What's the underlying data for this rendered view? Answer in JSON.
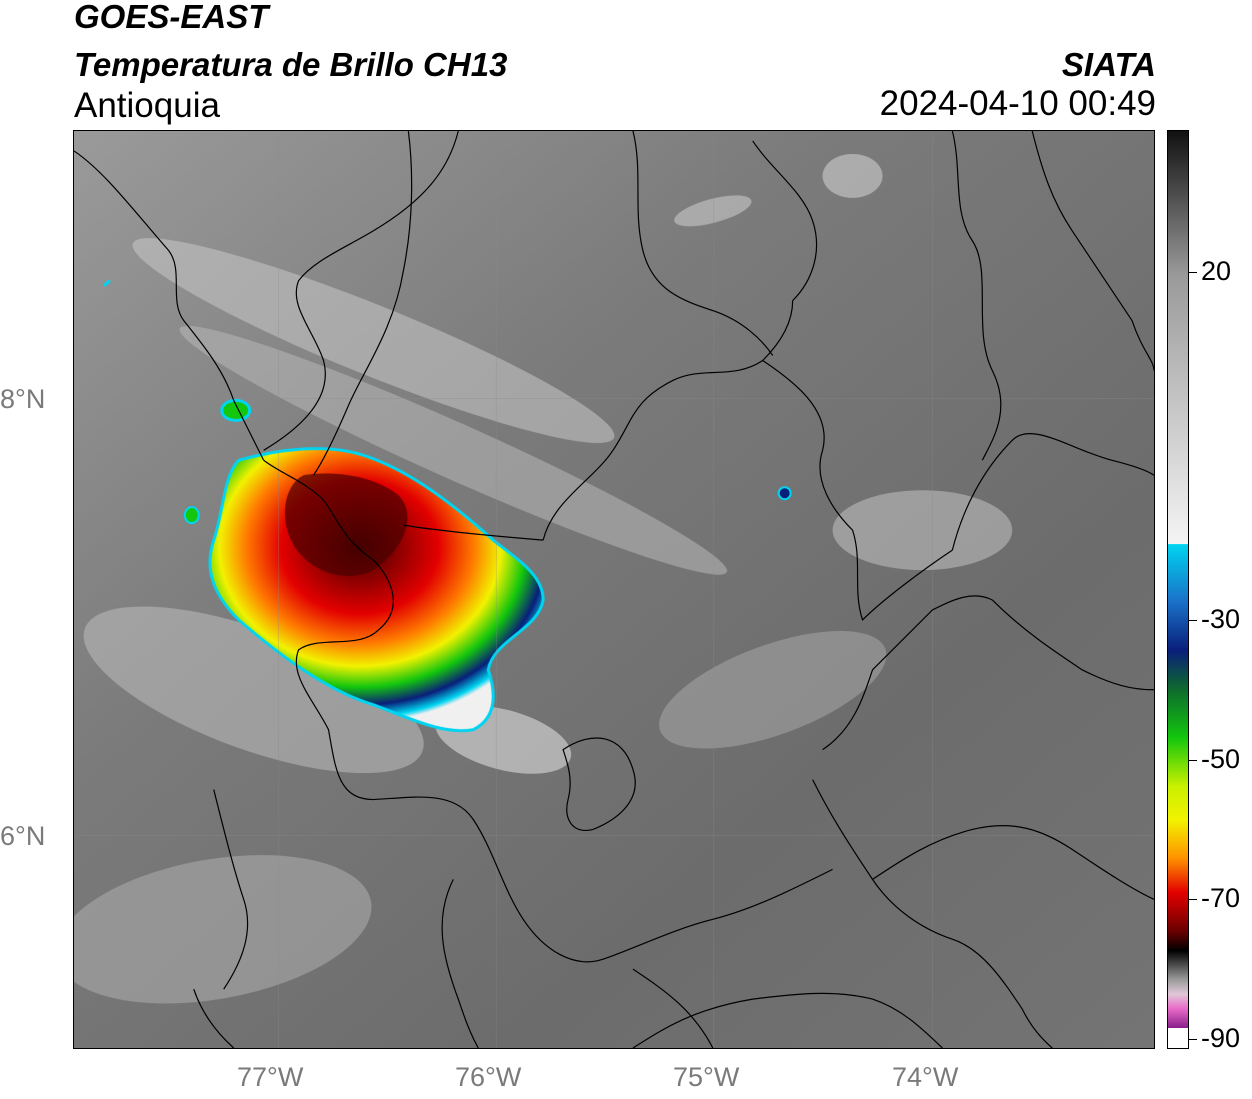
{
  "header": {
    "satellite": "GOES-EAST",
    "product": "Temperatura de Brillo CH13",
    "region": "Antioquia",
    "organization": "SIATA",
    "datetime": "2024-04-10 00:49"
  },
  "axes": {
    "latitude_labels": [
      "8°N",
      "6°N"
    ],
    "longitude_labels": [
      "77°W",
      "76°W",
      "75°W",
      "74°W"
    ]
  },
  "colorbar": {
    "tick_labels": [
      "20",
      "-30",
      "-50",
      "-70",
      "-90"
    ],
    "colors": {
      "warm_gray_top": "#111111",
      "gray_mid": "#9a9a9a",
      "white": "#f4f4f4",
      "cyan": "#00d4f0",
      "dark_blue": "#0a1f7a",
      "green": "#13c60e",
      "yellow": "#f2f200",
      "orange": "#ff7a00",
      "red": "#e30000",
      "dark_red": "#5a0000",
      "black": "#000000",
      "pink": "#e96ac8",
      "purple": "#8a1f8a"
    }
  },
  "map_layers": {
    "background": "brightness-temperature grayscale",
    "features": [
      "coastline",
      "department-borders",
      "convective-cell"
    ]
  }
}
